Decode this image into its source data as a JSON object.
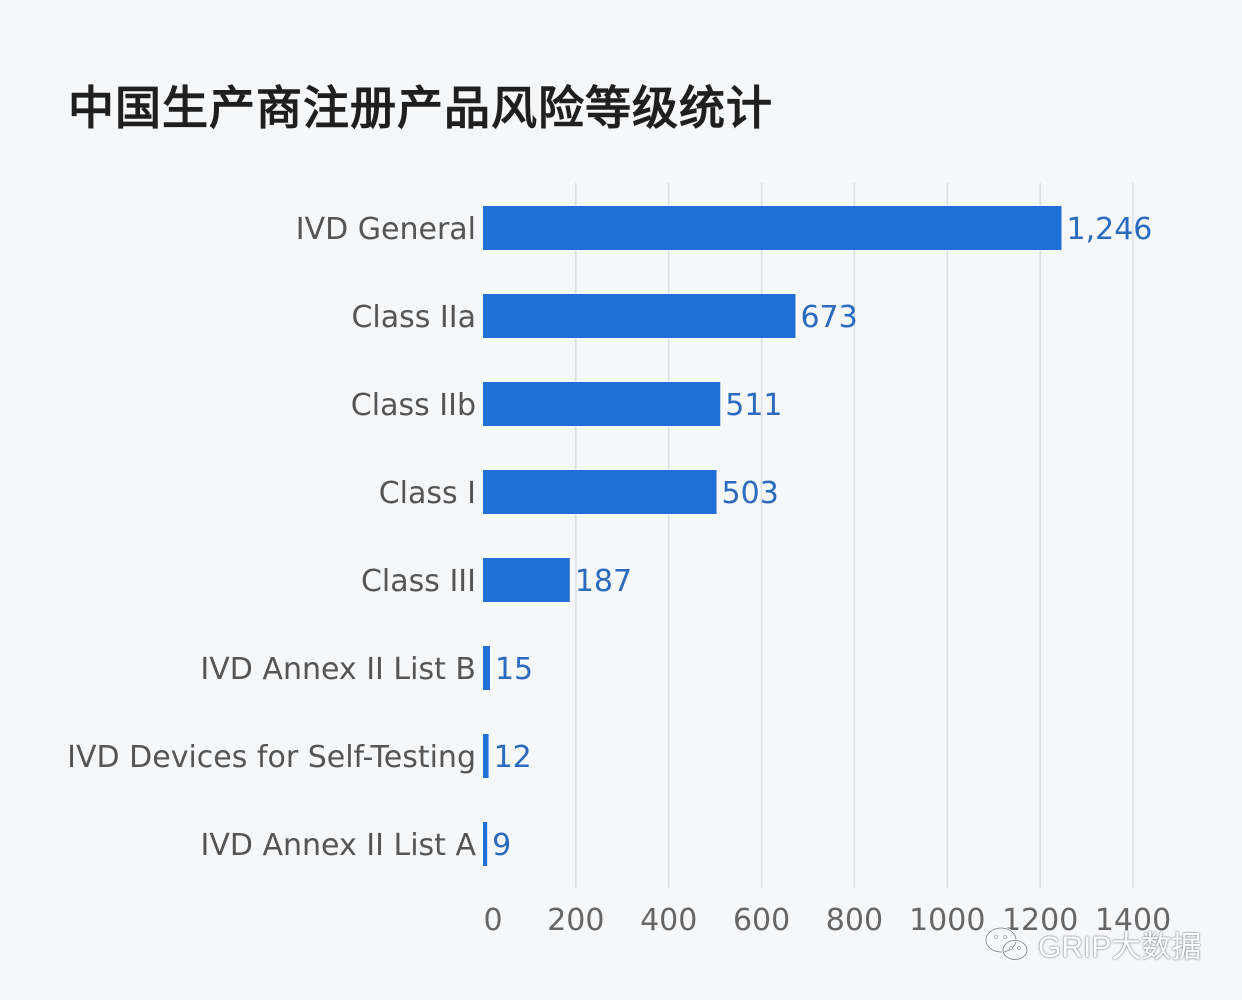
{
  "title": "中国生产商注册产品风险等级统计",
  "watermark": {
    "icon": "wechat-icon",
    "text": "GRIP大数据"
  },
  "colors": {
    "bar": "#1f6fd6",
    "value_label": "#2a6bbf",
    "category_label": "#555555",
    "tick_label": "#666666",
    "grid": "#dcdfe3",
    "background": "#f6f7f9"
  },
  "chart_data": {
    "type": "bar",
    "orientation": "horizontal",
    "categories": [
      "IVD General",
      "Class IIa",
      "Class IIb",
      "Class I",
      "Class III",
      "IVD Annex II List B",
      "IVD Devices for Self-Testing",
      "IVD Annex II List A"
    ],
    "values": [
      1246,
      673,
      511,
      503,
      187,
      15,
      12,
      9
    ],
    "value_labels": [
      "1,246",
      "673",
      "511",
      "503",
      "187",
      "15",
      "12",
      "9"
    ],
    "xlim": [
      0,
      1400
    ],
    "xticks": [
      0,
      200,
      400,
      600,
      800,
      1000,
      1200,
      1400
    ],
    "xtick_labels": [
      "0",
      "200",
      "400",
      "600",
      "800",
      "1000",
      "1200",
      "1400"
    ],
    "grid": "vertical",
    "legend": "none"
  }
}
